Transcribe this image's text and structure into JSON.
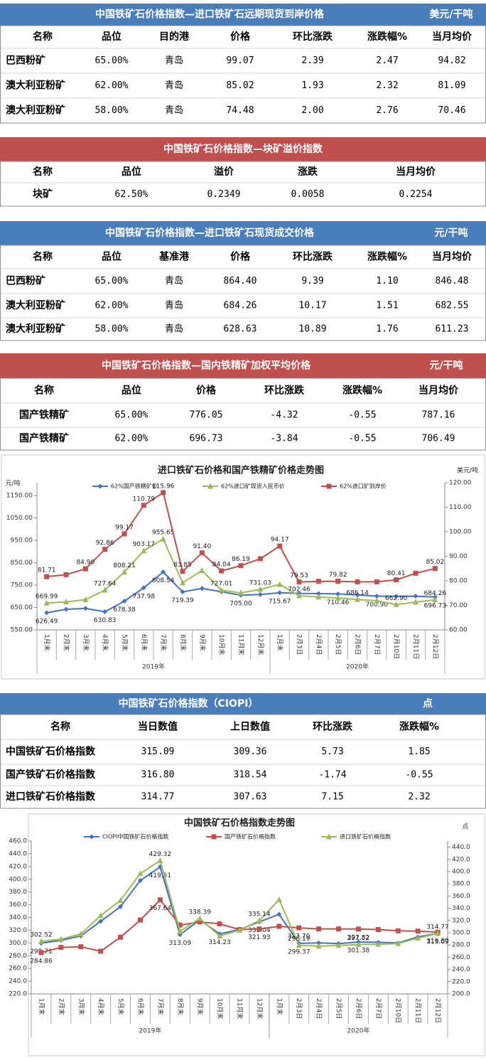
{
  "tables": [
    {
      "title": "中国铁矿石价格指数—进口铁矿石远期现货到岸价格",
      "unit": "美元/干吨",
      "color": "#4a7ebb",
      "columns": [
        "名称",
        "品位",
        "目的港",
        "价格",
        "环比涨跌",
        "涨跌幅%",
        "当月均价"
      ],
      "rows": [
        [
          "巴西粉矿",
          "65.00%",
          "青岛",
          "99.07",
          "2.39",
          "2.47",
          "94.82"
        ],
        [
          "澳大利亚粉矿",
          "62.00%",
          "青岛",
          "85.02",
          "1.93",
          "2.32",
          "81.09"
        ],
        [
          "澳大利亚粉矿",
          "58.00%",
          "青岛",
          "74.48",
          "2.00",
          "2.76",
          "70.46"
        ]
      ]
    },
    {
      "title": "中国铁矿石价格指数—块矿溢价指数",
      "color": "#c0504d",
      "columns": [
        "名称",
        "品位",
        "溢价",
        "涨跌",
        "当月均价"
      ],
      "rows": [
        [
          "块矿",
          "62.50%",
          "0.2349",
          "0.0058",
          "0.2254"
        ]
      ]
    },
    {
      "title": "中国铁矿石价格指数—进口铁矿石现货成交价格",
      "unit": "元/干吨",
      "color": "#4a7ebb",
      "columns": [
        "名称",
        "品位",
        "基准港",
        "价格",
        "环比涨跌",
        "涨跌幅%",
        "当月均价"
      ],
      "rows": [
        [
          "巴西粉矿",
          "65.00%",
          "青岛",
          "864.40",
          "9.39",
          "1.10",
          "846.48"
        ],
        [
          "澳大利亚粉矿",
          "62.00%",
          "青岛",
          "684.26",
          "10.17",
          "1.51",
          "682.55"
        ],
        [
          "澳大利亚粉矿",
          "58.00%",
          "青岛",
          "628.63",
          "10.89",
          "1.76",
          "611.23"
        ]
      ]
    },
    {
      "title": "中国铁矿石价格指数—国内铁精矿加权平均价格",
      "unit": "元/干吨",
      "color": "#c0504d",
      "columns": [
        "名称",
        "品位",
        "价格",
        "环比涨跌",
        "涨跌幅%",
        "当月均价"
      ],
      "rows": [
        [
          "国产铁精矿",
          "65.00%",
          "776.05",
          "-4.32",
          "-0.55",
          "787.16"
        ],
        [
          "国产铁精矿",
          "62.00%",
          "696.73",
          "-3.84",
          "-0.55",
          "706.49"
        ]
      ]
    },
    {
      "title": "中国铁矿石价格指数（CIOPI）",
      "unit": "点",
      "color": "#4a7ebb",
      "columns": [
        "名称",
        "当日数值",
        "上日数值",
        "环比涨跌",
        "涨跌幅%"
      ],
      "rows": [
        [
          "中国铁矿石价格指数",
          "315.09",
          "309.36",
          "5.73",
          "1.85"
        ],
        [
          "国产铁矿石价格指数",
          "316.80",
          "318.54",
          "-1.74",
          "-0.55"
        ],
        [
          "进口铁矿石价格指数",
          "314.77",
          "307.63",
          "7.15",
          "2.32"
        ]
      ]
    }
  ],
  "chart_data": [
    {
      "type": "line",
      "title": "进口铁矿石价格和国产铁精矿价格走势图",
      "y_label": "元/吨",
      "y2_label": "美元/吨",
      "grid": false,
      "categories": [
        "1月末",
        "2月末",
        "3月末",
        "4月末",
        "5月末",
        "6月末",
        "7月末",
        "8月末",
        "9月末",
        "10月末",
        "11月末",
        "12月末",
        "1月末",
        "2月3日",
        "2月4日",
        "2月5日",
        "2月6日",
        "2月7日",
        "2月10日",
        "2月11日",
        "2月12日"
      ],
      "x_groups": [
        {
          "label": "2019年",
          "count": 12
        },
        {
          "label": "2020年",
          "count": 9
        }
      ],
      "ylim": [
        550,
        1207
      ],
      "yticks": [
        {
          "value": 550,
          "label": "550.00"
        },
        {
          "value": 650,
          "label": "650.00"
        },
        {
          "value": 750,
          "label": "750.00"
        },
        {
          "value": 850,
          "label": "850.00"
        },
        {
          "value": 950,
          "label": "950.00"
        },
        {
          "value": 1050,
          "label": "1050.00"
        },
        {
          "value": 1150,
          "label": "1150.00"
        }
      ],
      "y2lim": [
        60,
        120
      ],
      "y2ticks": [
        {
          "value": 60,
          "label": "60.00"
        },
        {
          "value": 70,
          "label": "70.00"
        },
        {
          "value": 80,
          "label": "80.00"
        },
        {
          "value": 90,
          "label": "90.00"
        },
        {
          "value": 100,
          "label": "100.00"
        },
        {
          "value": 110,
          "label": "110.00"
        },
        {
          "value": 120,
          "label": "120.00"
        }
      ],
      "series": [
        {
          "name": "62%国产铁精矿价",
          "color": "#4472c4",
          "marker": "diamond",
          "axis": "y",
          "values": [
            626.49,
            642,
            646,
            630.83,
            678.38,
            737.98,
            808.54,
            719.39,
            735,
            720,
            705,
            708,
            715.67,
            713,
            712,
            710.46,
            706,
            700.9,
            700,
            700.57,
            696.73
          ],
          "value_labels": [
            "626.49",
            null,
            null,
            "630.83",
            "678.38",
            "737.98",
            "808.54",
            "719.39",
            null,
            null,
            "705.00",
            null,
            "715.67",
            null,
            null,
            "710.46",
            null,
            "700.90",
            null,
            null,
            "696.73"
          ]
        },
        {
          "name": "62%进口矿现货人民币价",
          "color": "#9bbb59",
          "marker": "triangle",
          "axis": "y",
          "values": [
            669.99,
            675,
            685,
            727.64,
            808.21,
            903.17,
            955.65,
            760,
            815,
            727.01,
            715,
            731.03,
            753,
            702.46,
            697,
            692,
            686.14,
            680,
            662.9,
            674.09,
            684.26
          ],
          "value_labels": [
            "669.99",
            null,
            null,
            "727.64",
            "808.21",
            "903.17",
            "955.65",
            null,
            null,
            "727.01",
            null,
            "731.03",
            null,
            "702.46",
            null,
            null,
            "686.14",
            null,
            "662.90",
            null,
            "684.26"
          ]
        },
        {
          "name": "62%进口矿到岸价",
          "color": "#c0504d",
          "marker": "square",
          "axis": "y2",
          "values": [
            81.71,
            82.5,
            84.9,
            92.86,
            99.17,
            110.79,
            115.96,
            83.85,
            91.4,
            84.04,
            86.19,
            89,
            94.17,
            79.53,
            79.8,
            79.82,
            79.6,
            79.6,
            80.41,
            83.09,
            85.02
          ],
          "value_labels": [
            "81.71",
            null,
            "84.90",
            "92.86",
            "99.17",
            "110.79",
            "115.96",
            "83.85",
            "91.40",
            "84.04",
            "86.19",
            null,
            "94.17",
            "79.53",
            null,
            "79.82",
            null,
            null,
            "80.41",
            null,
            "85.02"
          ]
        }
      ]
    },
    {
      "type": "line",
      "title": "中国铁矿石价格指数走势图",
      "y2_label": "点",
      "grid": false,
      "categories": [
        "1月末",
        "2月末",
        "3月末",
        "4月末",
        "5月末",
        "6月末",
        "7月末",
        "8月末",
        "9月末",
        "10月末",
        "11月末",
        "12月末",
        "1月末",
        "2月3日",
        "2月4日",
        "2月5日",
        "2月6日",
        "2月7日",
        "2月10日",
        "2月11日",
        "2月12日"
      ],
      "x_groups": [
        {
          "label": "2019年",
          "count": 12
        },
        {
          "label": "2020年",
          "count": 9
        }
      ],
      "ylim": [
        220,
        460
      ],
      "yticks": [
        {
          "value": 220,
          "label": "220.0"
        },
        {
          "value": 240,
          "label": "240.0"
        },
        {
          "value": 260,
          "label": "260.0"
        },
        {
          "value": 280,
          "label": "280.0"
        },
        {
          "value": 300,
          "label": "300.0"
        },
        {
          "value": 320,
          "label": "320.0"
        },
        {
          "value": 340,
          "label": "340.0"
        },
        {
          "value": 360,
          "label": "360.0"
        },
        {
          "value": 380,
          "label": "380.0"
        },
        {
          "value": 400,
          "label": "400.0"
        },
        {
          "value": 420,
          "label": "420.0"
        },
        {
          "value": 440,
          "label": "440.0"
        },
        {
          "value": 460,
          "label": "460.0"
        }
      ],
      "y2lim": [
        200,
        450
      ],
      "y2ticks": [
        {
          "value": 200,
          "label": "200.0"
        },
        {
          "value": 220,
          "label": "220.0"
        },
        {
          "value": 240,
          "label": "240.0"
        },
        {
          "value": 260,
          "label": "260.0"
        },
        {
          "value": 280,
          "label": "280.0"
        },
        {
          "value": 300,
          "label": "300.0"
        },
        {
          "value": 320,
          "label": "320.0"
        },
        {
          "value": 340,
          "label": "340.0"
        },
        {
          "value": 360,
          "label": "360.0"
        },
        {
          "value": 380,
          "label": "380.0"
        },
        {
          "value": 400,
          "label": "400.0"
        },
        {
          "value": 420,
          "label": "420.0"
        },
        {
          "value": 440,
          "label": "440.0"
        }
      ],
      "series": [
        {
          "name": "CIOPI中国铁矿石价格指数",
          "color": "#4472c4",
          "marker": "diamond",
          "axis": "y",
          "values": [
            299.71,
            304,
            311,
            334,
            357,
            398,
            419.51,
            313.09,
            336,
            314.23,
            321,
            333.04,
            345,
            299.37,
            300,
            299,
            301.38,
            301,
            300,
            309.36,
            315.09
          ],
          "value_labels": [
            "299.71",
            null,
            null,
            null,
            null,
            null,
            "419.51",
            "313.09",
            null,
            "314.23",
            null,
            "333.04",
            null,
            "299.37",
            null,
            null,
            "301.38",
            null,
            null,
            null,
            "315.09"
          ]
        },
        {
          "name": "国产铁矿石价格指数",
          "color": "#c0504d",
          "marker": "square",
          "axis": "y",
          "values": [
            284.86,
            293,
            294,
            287,
            309,
            336,
            367.64,
            328,
            333,
            330,
            321,
            321.93,
            326,
            323.7,
            322,
            322,
            321.82,
            321,
            319,
            318.54,
            316.8
          ],
          "value_labels": [
            "284.86",
            null,
            null,
            null,
            null,
            null,
            "367.64",
            null,
            null,
            null,
            null,
            "321.93",
            null,
            "323.70",
            null,
            null,
            "321.82",
            null,
            null,
            null,
            "316.80"
          ]
        },
        {
          "name": "进口铁矿石价格指数",
          "color": "#9bbb59",
          "marker": "triangle",
          "axis": "y",
          "values": [
            302.52,
            306,
            314,
            343,
            367,
            409,
            429.32,
            318,
            338.39,
            311,
            320,
            335.14,
            368,
            296.19,
            295,
            296,
            297.52,
            298,
            299,
            307.63,
            314.77
          ],
          "value_labels": [
            "302.52",
            null,
            null,
            null,
            null,
            null,
            "429.32",
            null,
            "338.39",
            null,
            null,
            "335.14",
            null,
            "296.19",
            null,
            null,
            "297.52",
            null,
            null,
            null,
            "314.77"
          ]
        }
      ]
    }
  ]
}
